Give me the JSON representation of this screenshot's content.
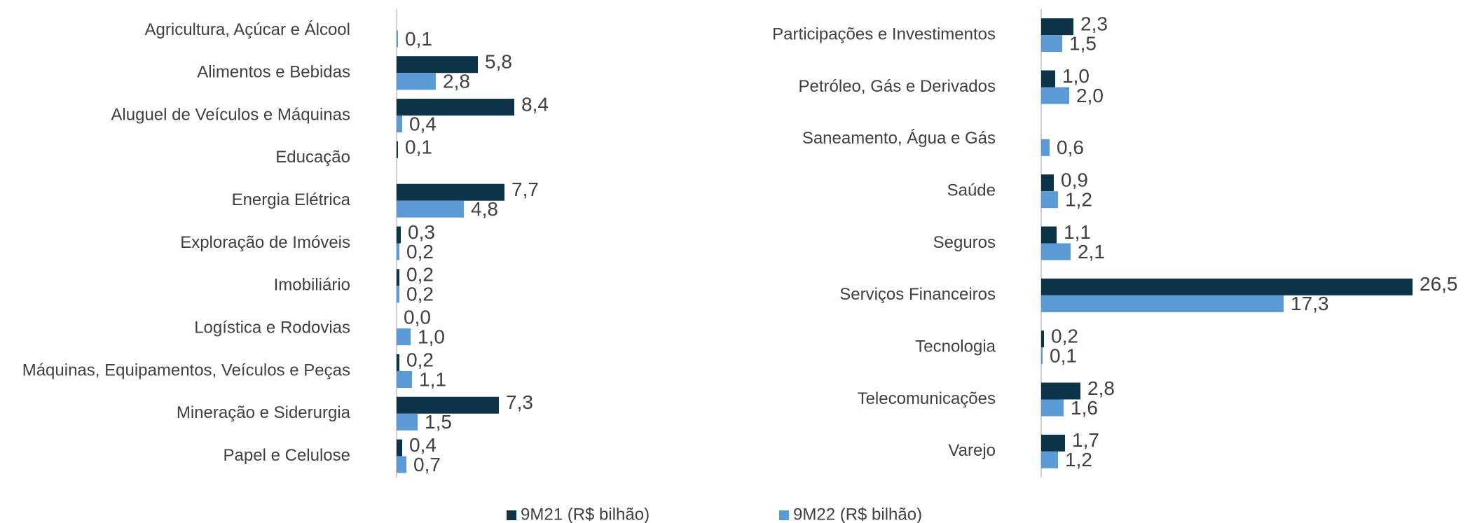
{
  "chart_data": [
    {
      "type": "bar",
      "orientation": "horizontal",
      "categories": [
        "Agricultura, Açúcar e Álcool",
        "Alimentos e Bebidas",
        "Aluguel de Veículos e Máquinas",
        "Educação",
        "Energia Elétrica",
        "Exploração de Imóveis",
        "Imobiliário",
        "Logística e Rodovias",
        "Máquinas, Equipamentos, Veículos e Peças",
        "Mineração e Siderurgia",
        "Papel e Celulose"
      ],
      "xlim": [
        0,
        30
      ],
      "series": [
        {
          "name": "9M21 (R$ bilhão)",
          "color": "#0d3349",
          "values": [
            null,
            5.8,
            8.4,
            0.1,
            7.7,
            0.3,
            0.2,
            0.0,
            0.2,
            7.3,
            0.4
          ],
          "value_labels": [
            null,
            "5,8",
            "8,4",
            "0,1",
            "7,7",
            "0,3",
            "0,2",
            "0,0",
            "0,2",
            "7,3",
            "0,4"
          ]
        },
        {
          "name": "9M22 (R$ bilhão)",
          "color": "#5b9bd5",
          "values": [
            0.1,
            2.8,
            0.4,
            null,
            4.8,
            0.2,
            0.2,
            1.0,
            1.1,
            1.5,
            0.7
          ],
          "value_labels": [
            "0,1",
            "2,8",
            "0,4",
            null,
            "4,8",
            "0,2",
            "0,2",
            "1,0",
            "1,1",
            "1,5",
            "0,7"
          ]
        }
      ]
    },
    {
      "type": "bar",
      "orientation": "horizontal",
      "categories": [
        "Participações e Investimentos",
        "Petróleo, Gás e Derivados",
        "Saneamento, Água e Gás",
        "Saúde",
        "Seguros",
        "Serviços Financeiros",
        "Tecnologia",
        "Telecomunicações",
        "Varejo"
      ],
      "xlim": [
        0,
        30
      ],
      "series": [
        {
          "color": "#0d3349",
          "values": [
            2.3,
            1.0,
            null,
            0.9,
            1.1,
            26.5,
            0.2,
            2.8,
            1.7
          ],
          "value_labels": [
            "2,3",
            "1,0",
            null,
            "0,9",
            "1,1",
            "26,5",
            "0,2",
            "2,8",
            "1,7"
          ]
        },
        {
          "color": "#5b9bd5",
          "values": [
            1.5,
            2.0,
            0.6,
            1.2,
            2.1,
            17.3,
            0.1,
            1.6,
            1.2
          ],
          "value_labels": [
            "1,5",
            "2,0",
            "0,6",
            "1,2",
            "2,1",
            "17,3",
            "0,1",
            "1,6",
            "1,2"
          ]
        }
      ]
    }
  ]
}
